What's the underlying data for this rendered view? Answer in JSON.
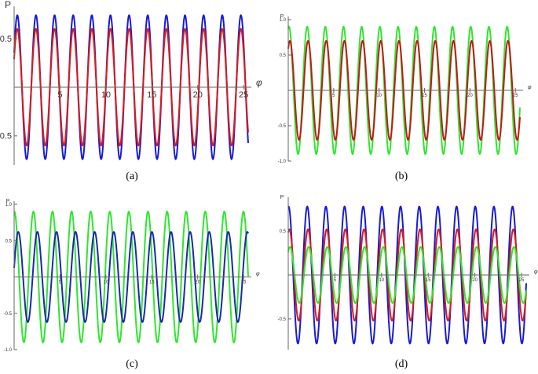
{
  "chart_data": [
    {
      "panel": "(a)",
      "type": "line",
      "ylabel": "P",
      "xlabel": "φ",
      "xlim": [
        0,
        25.5
      ],
      "ylim": [
        -0.8,
        0.8
      ],
      "xticks": [
        5,
        10,
        15,
        20,
        25
      ],
      "yticks": [
        0.5,
        -0.5
      ],
      "ytick_labels": [
        "0.5",
        "-0.5"
      ],
      "series": [
        {
          "color": "#1a1ad6",
          "function": "sine",
          "amplitude": 0.74,
          "period": 2.03,
          "phase": 0.5
        },
        {
          "color": "#d81b1b",
          "function": "sine",
          "amplitude": 0.6,
          "period": 2.03,
          "phase": 0.5
        }
      ]
    },
    {
      "panel": "(b)",
      "type": "line",
      "ylabel": "P",
      "xlabel": "φ",
      "xlim": [
        0,
        25.5
      ],
      "ylim": [
        -1.0,
        1.0
      ],
      "xticks": [
        5,
        10,
        15,
        20,
        25
      ],
      "yticks": [
        1.0,
        0.5,
        -0.5,
        -1.0
      ],
      "ytick_labels": [
        "1.0",
        "0.5",
        "-0.5",
        "-1.0"
      ],
      "series": [
        {
          "color": "#2ee62e",
          "function": "sine",
          "amplitude": 0.9,
          "period": 2.0,
          "phase": 1.3
        },
        {
          "color": "#c01a1a",
          "function": "sine",
          "amplitude": 0.7,
          "period": 2.0,
          "phase": 1.0
        }
      ]
    },
    {
      "panel": "(c)",
      "type": "line",
      "ylabel": "P",
      "xlabel": "φ",
      "xlim": [
        0,
        25.5
      ],
      "ylim": [
        -1.0,
        1.0
      ],
      "xticks": [
        5,
        10,
        15,
        20,
        25
      ],
      "yticks": [
        1.0,
        0.5,
        -0.5,
        -1.0
      ],
      "ytick_labels": [
        "1.0",
        "0.5",
        "-0.5",
        "-1.0"
      ],
      "series": [
        {
          "color": "#2ee62e",
          "function": "sine",
          "amplitude": 0.9,
          "period": 2.08,
          "phase": 1.5
        },
        {
          "color": "#1a2aa8",
          "function": "sine",
          "amplitude": 0.62,
          "period": 2.08,
          "phase": 0.2
        }
      ]
    },
    {
      "panel": "(d)",
      "type": "line",
      "ylabel": "P",
      "xlabel": "φ",
      "xlim": [
        0,
        25.5
      ],
      "ylim": [
        -0.85,
        0.85
      ],
      "xticks": [
        5,
        10,
        15,
        20,
        25
      ],
      "yticks": [
        0.5,
        -0.5
      ],
      "ytick_labels": [
        "0.5",
        "-0.5"
      ],
      "series": [
        {
          "color": "#1a1ad6",
          "function": "sine",
          "amplitude": 0.78,
          "period": 2.0,
          "phase": 1.45
        },
        {
          "color": "#d81b1b",
          "function": "sine",
          "amplitude": 0.52,
          "period": 2.0,
          "phase": 1.2
        },
        {
          "color": "#2ee62e",
          "function": "sine",
          "amplitude": 0.32,
          "period": 2.0,
          "phase": 1.0
        }
      ]
    }
  ],
  "captions": [
    "(a)",
    "(b)",
    "(c)",
    "(d)"
  ]
}
